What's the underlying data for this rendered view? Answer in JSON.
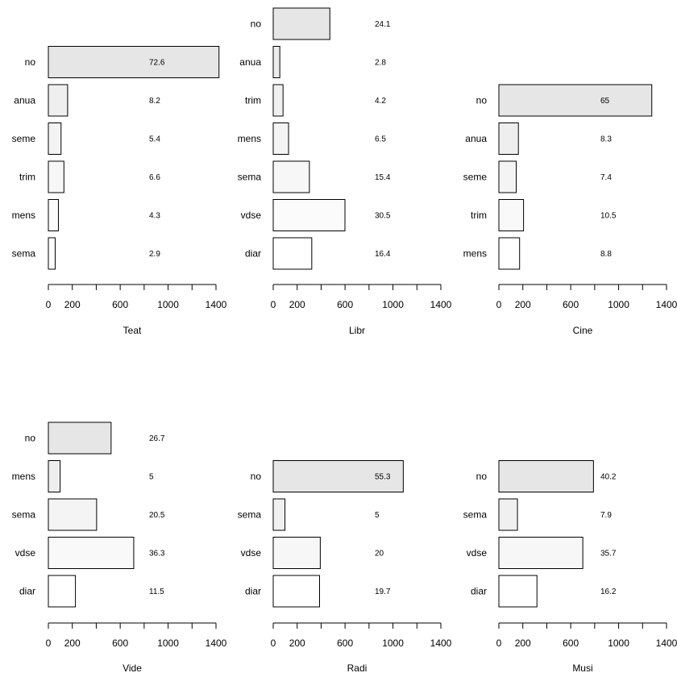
{
  "chart_data": [
    {
      "type": "bar",
      "orientation": "horizontal",
      "xlabel": "Teat",
      "categories": [
        "no",
        "anua",
        "seme",
        "trim",
        "mens",
        "sema"
      ],
      "values": [
        1425,
        161,
        106,
        130,
        84,
        57
      ],
      "percent_labels": [
        "72.6",
        "8.2",
        "5.4",
        "6.6",
        "4.3",
        "2.9"
      ],
      "xlim": [
        0,
        1400
      ],
      "xticks": [
        "0",
        "200",
        "600",
        "1000",
        "1400"
      ],
      "colors": [
        "#e6e6e6",
        "#efefef",
        "#f3f3f3",
        "#f7f7f7",
        "#fbfbfb",
        "#ffffff"
      ]
    },
    {
      "type": "bar",
      "orientation": "horizontal",
      "xlabel": "Libr",
      "categories": [
        "no",
        "anua",
        "trim",
        "mens",
        "sema",
        "vdse",
        "diar"
      ],
      "values": [
        473,
        55,
        82,
        128,
        302,
        599,
        322
      ],
      "percent_labels": [
        "24.1",
        "2.8",
        "4.2",
        "6.5",
        "15.4",
        "30.5",
        "16.4"
      ],
      "xlim": [
        0,
        1400
      ],
      "xticks": [
        "0",
        "200",
        "600",
        "1000",
        "1400"
      ],
      "colors": [
        "#e6e6e6",
        "#ececec",
        "#f0f0f0",
        "#f4f4f4",
        "#f7f7f7",
        "#fbfbfb",
        "#ffffff"
      ]
    },
    {
      "type": "bar",
      "orientation": "horizontal",
      "xlabel": "Cine",
      "categories": [
        "no",
        "anua",
        "seme",
        "trim",
        "mens"
      ],
      "values": [
        1277,
        163,
        145,
        206,
        173
      ],
      "percent_labels": [
        "65",
        "8.3",
        "7.4",
        "10.5",
        "8.8"
      ],
      "xlim": [
        0,
        1400
      ],
      "xticks": [
        "0",
        "200",
        "600",
        "1000",
        "1400"
      ],
      "colors": [
        "#e6e6e6",
        "#eeeeee",
        "#f4f4f4",
        "#f9f9f9",
        "#ffffff"
      ]
    },
    {
      "type": "bar",
      "orientation": "horizontal",
      "xlabel": "Vide",
      "categories": [
        "no",
        "mens",
        "sema",
        "vdse",
        "diar"
      ],
      "values": [
        524,
        98,
        403,
        713,
        226
      ],
      "percent_labels": [
        "26.7",
        "5",
        "20.5",
        "36.3",
        "11.5"
      ],
      "xlim": [
        0,
        1400
      ],
      "xticks": [
        "0",
        "200",
        "600",
        "1000",
        "1400"
      ],
      "colors": [
        "#e6e6e6",
        "#eeeeee",
        "#f4f4f4",
        "#f9f9f9",
        "#ffffff"
      ]
    },
    {
      "type": "bar",
      "orientation": "horizontal",
      "xlabel": "Radi",
      "categories": [
        "no",
        "sema",
        "vdse",
        "diar"
      ],
      "values": [
        1086,
        98,
        393,
        387
      ],
      "percent_labels": [
        "55.3",
        "5",
        "20",
        "19.7"
      ],
      "xlim": [
        0,
        1400
      ],
      "xticks": [
        "0",
        "200",
        "600",
        "1000",
        "1400"
      ],
      "colors": [
        "#e6e6e6",
        "#f0f0f0",
        "#f7f7f7",
        "#ffffff"
      ]
    },
    {
      "type": "bar",
      "orientation": "horizontal",
      "xlabel": "Musi",
      "categories": [
        "no",
        "sema",
        "vdse",
        "diar"
      ],
      "values": [
        790,
        155,
        701,
        318
      ],
      "percent_labels": [
        "40.2",
        "7.9",
        "35.7",
        "16.2"
      ],
      "xlim": [
        0,
        1400
      ],
      "xticks": [
        "0",
        "200",
        "600",
        "1000",
        "1400"
      ],
      "colors": [
        "#e6e6e6",
        "#f0f0f0",
        "#f7f7f7",
        "#ffffff"
      ]
    }
  ]
}
